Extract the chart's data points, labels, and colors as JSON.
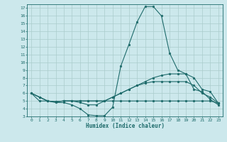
{
  "xlabel": "Humidex (Indice chaleur)",
  "bg_color": "#cce8ec",
  "grid_color": "#aacccc",
  "line_color": "#1e6b6b",
  "xlim": [
    -0.5,
    23.5
  ],
  "ylim": [
    3,
    17.5
  ],
  "xticks": [
    0,
    1,
    2,
    3,
    4,
    5,
    6,
    7,
    8,
    9,
    10,
    11,
    12,
    13,
    14,
    15,
    16,
    17,
    18,
    19,
    20,
    21,
    22,
    23
  ],
  "yticks": [
    3,
    4,
    5,
    6,
    7,
    8,
    9,
    10,
    11,
    12,
    13,
    14,
    15,
    16,
    17
  ],
  "lines": [
    [
      6,
      5,
      5,
      4.8,
      4.8,
      4.5,
      4,
      3.2,
      3.1,
      3.1,
      4.2,
      9.5,
      12.3,
      15.2,
      17.2,
      17.2,
      16,
      11.2,
      9,
      8.5,
      6.5,
      6.2,
      5.2,
      4.5
    ],
    [
      6,
      5.5,
      5,
      4.9,
      5,
      5,
      4.8,
      4.5,
      4.5,
      5,
      5.5,
      6,
      6.5,
      7,
      7.5,
      8,
      8.3,
      8.5,
      8.5,
      8.5,
      8,
      6.5,
      6.2,
      4.7
    ],
    [
      6,
      5.5,
      5,
      4.9,
      5,
      5,
      5,
      5,
      5,
      5,
      5.5,
      6,
      6.5,
      7,
      7.3,
      7.5,
      7.5,
      7.5,
      7.5,
      7.5,
      7,
      6,
      5.5,
      4.7
    ],
    [
      6,
      5.5,
      5,
      4.9,
      5,
      5,
      5,
      5,
      5,
      5,
      5,
      5,
      5,
      5,
      5,
      5,
      5,
      5,
      5,
      5,
      5,
      5,
      5,
      4.7
    ]
  ]
}
